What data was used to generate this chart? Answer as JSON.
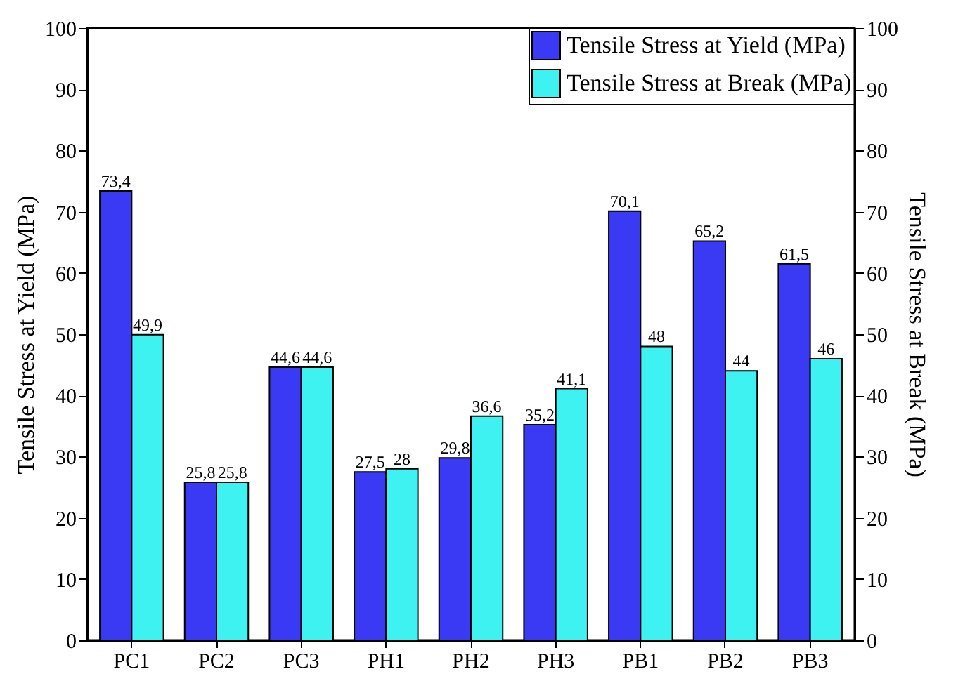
{
  "chart_data": {
    "type": "bar",
    "ylabel": "Tensile Stress at Yield (MPa)",
    "y2label": "Tensile Stress at Break (MPa)",
    "categories": [
      "PC1",
      "PC2",
      "PC3",
      "PH1",
      "PH2",
      "PH3",
      "PB1",
      "PB2",
      "PB3"
    ],
    "series": [
      {
        "name": "Tensile Stress at Yield (MPa)",
        "color": "#3a3af5",
        "values": [
          73.4,
          25.8,
          44.6,
          27.5,
          29.8,
          35.2,
          70.1,
          65.2,
          61.5
        ],
        "value_labels": [
          "73,4",
          "25,8",
          "44,6",
          "27,5",
          "29,8",
          "35,2",
          "70,1",
          "65,2",
          "61,5"
        ]
      },
      {
        "name": "Tensile Stress at Break (MPa)",
        "color": "#3ef2f2",
        "axis": "y2",
        "values": [
          49.9,
          25.8,
          44.6,
          28,
          36.6,
          41.1,
          48,
          44,
          46
        ],
        "value_labels": [
          "49,9",
          "25,8",
          "44,6",
          "28",
          "36,6",
          "41,1",
          "48",
          "44",
          "46"
        ]
      }
    ],
    "ylim": [
      0,
      100
    ],
    "yticks": [
      0,
      10,
      20,
      30,
      40,
      50,
      60,
      70,
      80,
      90,
      100
    ],
    "y2lim": [
      0,
      100
    ],
    "y2ticks": [
      0,
      10,
      20,
      30,
      40,
      50,
      60,
      70,
      80,
      90,
      100
    ],
    "legend": "top right",
    "grid": false
  }
}
